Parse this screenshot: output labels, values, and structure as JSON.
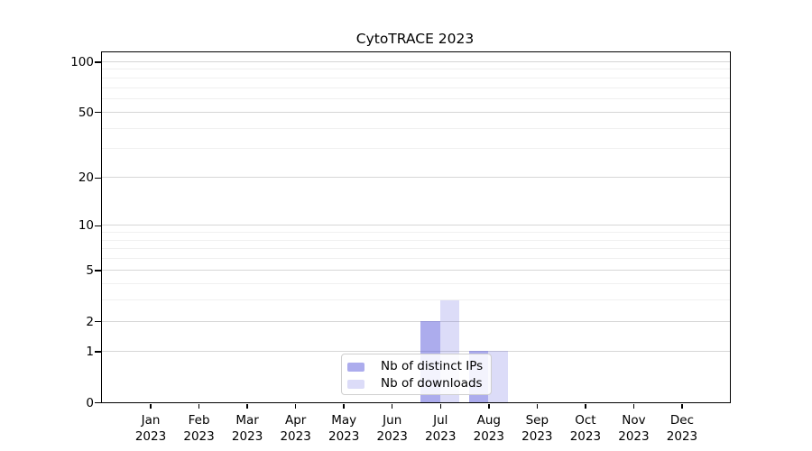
{
  "chart_data": {
    "type": "bar",
    "title": "CytoTRACE 2023",
    "categories": [
      "Jan 2023",
      "Feb 2023",
      "Mar 2023",
      "Apr 2023",
      "May 2023",
      "Jun 2023",
      "Jul 2023",
      "Aug 2023",
      "Sep 2023",
      "Oct 2023",
      "Nov 2023",
      "Dec 2023"
    ],
    "series": [
      {
        "name": "Nb of distinct IPs",
        "color": "#5a5adc80",
        "values": [
          0,
          0,
          0,
          0,
          0,
          0,
          2,
          1,
          0,
          0,
          0,
          0
        ]
      },
      {
        "name": "Nb of downloads",
        "color": "#5a5adc36",
        "values": [
          0,
          0,
          0,
          0,
          0,
          0,
          3,
          1,
          0,
          0,
          0,
          0
        ]
      }
    ],
    "xlabel": "",
    "ylabel": "",
    "yscale": "symlog",
    "ylim": [
      0,
      100
    ],
    "yticks_major": [
      0,
      1,
      2,
      5,
      10,
      20,
      50,
      100
    ],
    "yticks_minor": [
      3,
      4,
      6,
      7,
      8,
      9,
      30,
      40,
      60,
      70,
      80,
      90
    ],
    "grid": true,
    "legend_position": "bottom-center",
    "colors": {
      "spine": "#000000",
      "grid_major": "#d6d6d6",
      "grid_minor": "#f0f0f0",
      "legend_border": "#cfcfcf"
    }
  }
}
